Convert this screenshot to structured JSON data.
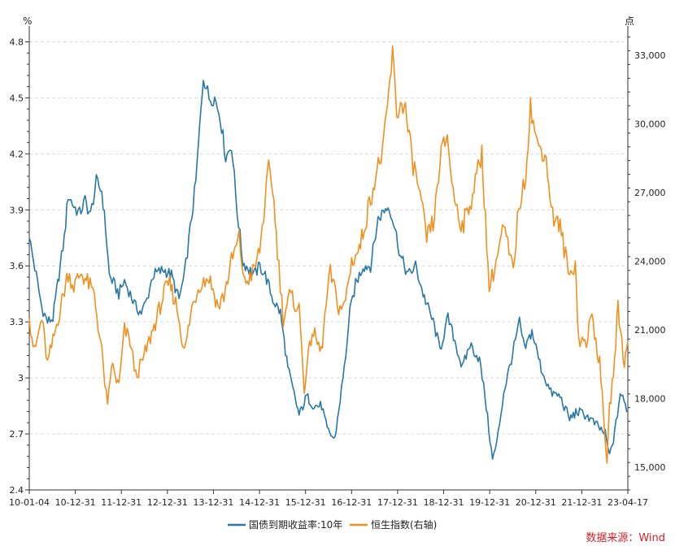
{
  "chart_data": {
    "type": "line",
    "x_ticks": [
      "10-01-04",
      "10-12-31",
      "11-12-31",
      "12-12-31",
      "13-12-31",
      "14-12-31",
      "15-12-31",
      "16-12-31",
      "17-12-31",
      "18-12-31",
      "19-12-31",
      "20-12-31",
      "21-12-31",
      "23-04-17"
    ],
    "left_axis": {
      "unit": "%",
      "ylim": [
        2.4,
        4.85
      ],
      "ticks": [
        "2.4",
        "2.7",
        "3",
        "3.3",
        "3.6",
        "3.9",
        "4.2",
        "4.5",
        "4.8"
      ],
      "tick_values": [
        2.4,
        2.7,
        3.0,
        3.3,
        3.6,
        3.9,
        4.2,
        4.5,
        4.8
      ]
    },
    "right_axis": {
      "unit": "点",
      "ylim": [
        14000,
        34000
      ],
      "ticks": [
        "15,000",
        "18,000",
        "21,000",
        "24,000",
        "27,000",
        "30,000",
        "33,000"
      ],
      "tick_values": [
        15000,
        18000,
        21000,
        24000,
        27000,
        30000,
        33000
      ]
    },
    "grid": "horizontal-dashed",
    "legend_position": "bottom-center",
    "series": [
      {
        "name": "国债到期收益率:10年",
        "color": "#2878a6",
        "axis": "left",
        "x": [
          "2010-01-04",
          "2010-03-01",
          "2010-04-15",
          "2010-06-01",
          "2010-07-15",
          "2010-09-01",
          "2010-10-15",
          "2010-11-15",
          "2010-12-31",
          "2011-02-15",
          "2011-04-01",
          "2011-05-15",
          "2011-07-01",
          "2011-08-15",
          "2011-09-15",
          "2011-10-15",
          "2011-12-31",
          "2012-02-15",
          "2012-04-01",
          "2012-05-15",
          "2012-07-01",
          "2012-08-15",
          "2012-10-01",
          "2012-12-31",
          "2013-03-01",
          "2013-05-01",
          "2013-06-15",
          "2013-08-01",
          "2013-09-15",
          "2013-11-15",
          "2013-12-31",
          "2014-02-15",
          "2014-04-01",
          "2014-05-15",
          "2014-07-01",
          "2014-08-15",
          "2014-10-01",
          "2014-12-31",
          "2015-02-15",
          "2015-04-01",
          "2015-06-01",
          "2015-08-01",
          "2015-10-01",
          "2015-12-31",
          "2016-03-01",
          "2016-05-01",
          "2016-07-01",
          "2016-08-15",
          "2016-10-15",
          "2016-12-31",
          "2017-02-15",
          "2017-04-01",
          "2017-06-01",
          "2017-08-01",
          "2017-10-01",
          "2017-11-20",
          "2017-12-31",
          "2018-02-15",
          "2018-04-01",
          "2018-06-01",
          "2018-08-01",
          "2018-10-01",
          "2018-12-31",
          "2019-02-15",
          "2019-04-20",
          "2019-06-15",
          "2019-08-15",
          "2019-10-15",
          "2019-12-31",
          "2020-02-15",
          "2020-04-15",
          "2020-05-20",
          "2020-07-15",
          "2020-09-15",
          "2020-11-20",
          "2020-12-31",
          "2021-03-01",
          "2021-05-15",
          "2021-08-01",
          "2021-10-15",
          "2021-12-31",
          "2022-03-01",
          "2022-05-15",
          "2022-08-01",
          "2022-10-15",
          "2022-11-20",
          "2022-12-31",
          "2023-02-15",
          "2023-04-17"
        ],
        "values": [
          3.75,
          3.55,
          3.38,
          3.3,
          3.32,
          3.55,
          3.75,
          3.98,
          3.92,
          3.88,
          3.95,
          3.87,
          4.05,
          4.0,
          3.8,
          3.55,
          3.45,
          3.52,
          3.45,
          3.38,
          3.35,
          3.42,
          3.55,
          3.58,
          3.55,
          3.42,
          3.55,
          3.8,
          4.05,
          4.62,
          4.5,
          4.5,
          4.4,
          4.18,
          4.25,
          3.9,
          3.62,
          3.55,
          3.6,
          3.55,
          3.42,
          3.35,
          3.05,
          2.8,
          2.9,
          2.85,
          2.85,
          2.72,
          2.67,
          3.05,
          3.35,
          3.5,
          3.6,
          3.6,
          3.85,
          3.9,
          3.92,
          3.8,
          3.65,
          3.55,
          3.6,
          3.45,
          3.28,
          3.15,
          3.32,
          3.2,
          3.05,
          3.18,
          3.1,
          2.9,
          2.56,
          2.65,
          2.92,
          3.1,
          3.3,
          3.15,
          3.25,
          3.05,
          2.92,
          2.9,
          2.78,
          2.82,
          2.8,
          2.75,
          2.7,
          2.58,
          2.7,
          2.92,
          2.82
        ]
      },
      {
        "name": "恒生指数(右轴)",
        "color": "#f1901f",
        "axis": "right",
        "x": [
          "2010-01-04",
          "2010-02-15",
          "2010-04-15",
          "2010-06-01",
          "2010-07-15",
          "2010-09-15",
          "2010-11-15",
          "2010-12-31",
          "2011-03-01",
          "2011-05-01",
          "2011-06-15",
          "2011-08-15",
          "2011-10-01",
          "2011-11-01",
          "2011-12-31",
          "2012-02-15",
          "2012-04-01",
          "2012-05-15",
          "2012-07-01",
          "2012-09-01",
          "2012-11-01",
          "2012-12-31",
          "2013-02-15",
          "2013-04-15",
          "2013-06-15",
          "2013-08-15",
          "2013-10-15",
          "2013-12-31",
          "2014-03-15",
          "2014-05-01",
          "2014-07-01",
          "2014-09-01",
          "2014-10-15",
          "2014-12-31",
          "2015-02-15",
          "2015-04-28",
          "2015-06-01",
          "2015-07-08",
          "2015-08-24",
          "2015-10-15",
          "2015-12-31",
          "2016-02-11",
          "2016-04-15",
          "2016-06-27",
          "2016-08-15",
          "2016-09-09",
          "2016-11-15",
          "2016-12-31",
          "2017-03-01",
          "2017-05-01",
          "2017-07-01",
          "2017-09-01",
          "2017-11-15",
          "2018-01-26",
          "2018-03-01",
          "2018-05-01",
          "2018-07-01",
          "2018-08-15",
          "2018-10-30",
          "2018-12-31",
          "2019-02-15",
          "2019-04-15",
          "2019-06-01",
          "2019-08-15",
          "2019-10-15",
          "2019-12-31",
          "2020-01-20",
          "2020-03-19",
          "2020-05-15",
          "2020-07-15",
          "2020-09-30",
          "2020-11-15",
          "2020-12-31",
          "2021-02-17",
          "2021-04-15",
          "2021-06-15",
          "2021-08-15",
          "2021-10-15",
          "2021-12-31",
          "2022-02-15",
          "2022-03-15",
          "2022-05-15",
          "2022-07-01",
          "2022-09-01",
          "2022-10-31",
          "2022-11-20",
          "2022-12-31",
          "2023-01-27",
          "2023-03-20",
          "2023-04-17"
        ],
        "values": [
          21500,
          20000,
          21500,
          19500,
          20500,
          22000,
          23500,
          22900,
          23500,
          23000,
          22500,
          20000,
          17500,
          19500,
          18500,
          21000,
          20500,
          19000,
          19500,
          20500,
          21500,
          22600,
          23000,
          22000,
          20000,
          22000,
          23000,
          23300,
          22000,
          22500,
          24000,
          25000,
          23000,
          23600,
          24500,
          28000,
          27200,
          24500,
          21500,
          22500,
          21900,
          18500,
          21000,
          20000,
          22500,
          23500,
          22000,
          22000,
          24000,
          24500,
          26000,
          27500,
          29000,
          33000,
          30500,
          31000,
          28500,
          27500,
          25000,
          25800,
          28500,
          29500,
          27000,
          25500,
          26500,
          28200,
          28800,
          22800,
          24000,
          25500,
          23500,
          26500,
          27300,
          30800,
          29000,
          28800,
          26000,
          25500,
          23300,
          24000,
          20500,
          20500,
          21600,
          19500,
          15200,
          17500,
          19700,
          22000,
          19500,
          20500
        ]
      }
    ],
    "source": "数据来源：Wind"
  }
}
